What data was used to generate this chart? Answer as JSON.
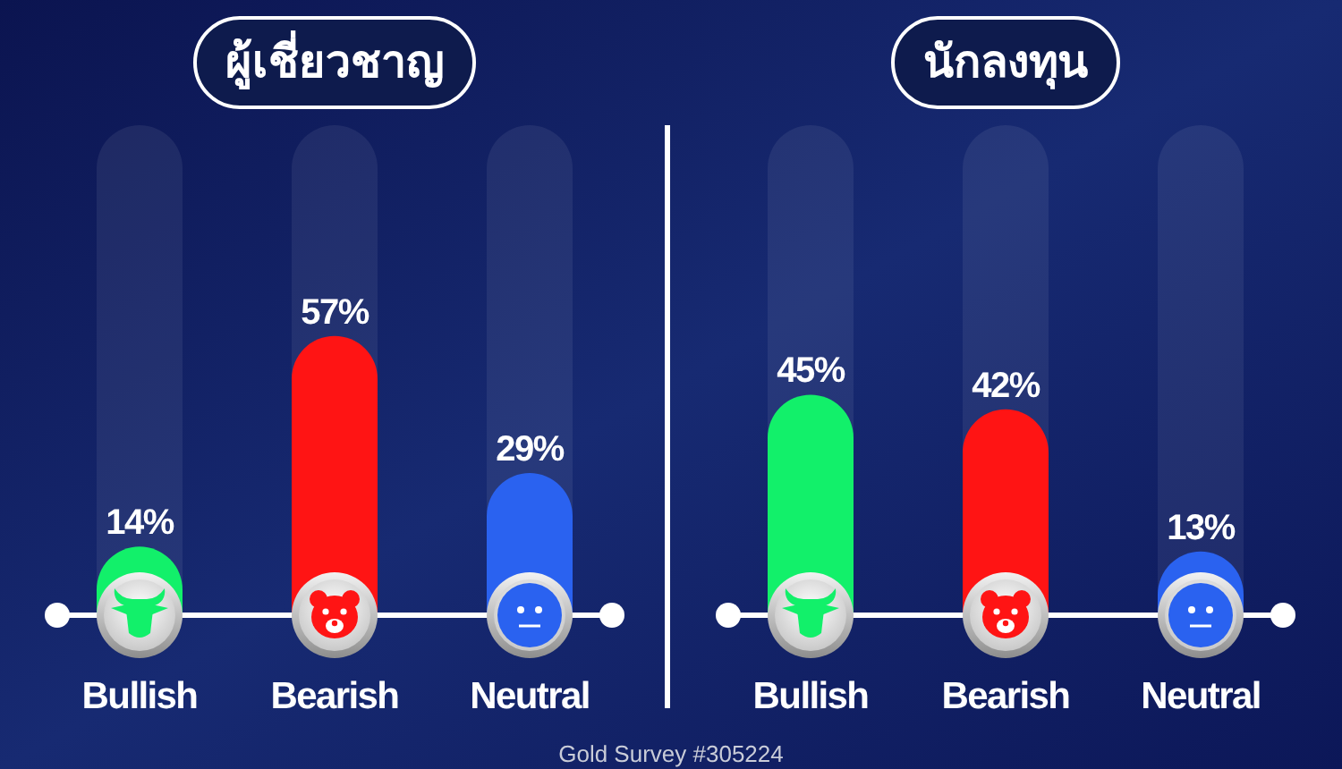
{
  "chart_data": [
    {
      "type": "bar",
      "title": "ผู้เชี่ยวชาญ",
      "categories": [
        "Bullish",
        "Bearish",
        "Neutral"
      ],
      "values": [
        14,
        57,
        29
      ],
      "colors": [
        "#12f06a",
        "#ff1414",
        "#2a62f0"
      ],
      "value_labels": [
        "14%",
        "57%",
        "29%"
      ],
      "ylim": [
        0,
        100
      ],
      "tick_labels": "x"
    },
    {
      "type": "bar",
      "title": "นักลงทุน",
      "categories": [
        "Bullish",
        "Bearish",
        "Neutral"
      ],
      "values": [
        45,
        42,
        13
      ],
      "colors": [
        "#12f06a",
        "#ff1414",
        "#2a62f0"
      ],
      "value_labels": [
        "45%",
        "42%",
        "13%"
      ],
      "ylim": [
        0,
        100
      ],
      "tick_labels": "x",
      "annotations": [
        "Gold Survey #305224"
      ]
    }
  ]
}
